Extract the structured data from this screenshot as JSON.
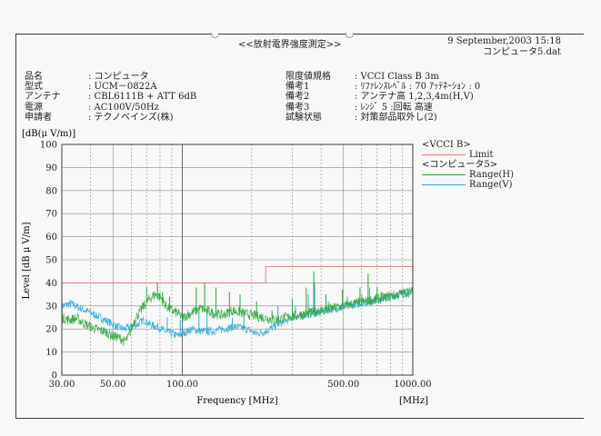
{
  "header": {
    "title": "<<放射電界強度測定>>",
    "date": "9 September,2003 15:18",
    "file": "コンピュータ5.dat"
  },
  "meta_left": [
    {
      "key": "品名",
      "value": ": コンピュータ"
    },
    {
      "key": "型式",
      "value": ": UCM－0822A"
    },
    {
      "key": "アンテナ",
      "value": ": CBL6111B + ATT 6dB"
    },
    {
      "key": "電源",
      "value": ": AC100V/50Hz"
    },
    {
      "key": "申請者",
      "value": ": テクノベインズ(株)"
    }
  ],
  "meta_right": [
    {
      "key": "限度値規格",
      "value": ": VCCI Class B 3m"
    },
    {
      "key": "備考1",
      "value": ": ﾘﾌｧﾚﾝｽﾚﾍﾞﾙ : 70 ｱｯﾃﾈｰｼｮﾝ : 0"
    },
    {
      "key": "備考2",
      "value": ": アンテナ高 1,2,3,4m(H,V)"
    },
    {
      "key": "備考3",
      "value": ": ﾚﾝｼﾞ 5 :回転  高速"
    },
    {
      "key": "試験状態",
      "value": ": 対策部品取外し(2)"
    }
  ],
  "legend": {
    "group1": "<VCCI  B>",
    "limit_label": "Limit",
    "group2": "<コンピュータ5>",
    "h_label": "Range(H)",
    "v_label": "Range(V)"
  },
  "colors": {
    "limit": "#e07a7a",
    "range_h": "#2aa43a",
    "range_v": "#29a9d9",
    "grid": "#8a8a8a"
  },
  "chart_data": {
    "type": "line",
    "xscale": "log",
    "xlim": [
      30,
      1000
    ],
    "ylim": [
      0,
      100
    ],
    "yunit": "[dB(μ V/m)]",
    "ylabel": "Level [dB μ V/m]",
    "xlabel": "Frequency [MHz]",
    "xunit": "[MHz]",
    "yticks": [
      0,
      10,
      20,
      30,
      40,
      50,
      60,
      70,
      80,
      90,
      100
    ],
    "xticks": [
      {
        "v": 30,
        "label": "30.00"
      },
      {
        "v": 50,
        "label": "50.00"
      },
      {
        "v": 100,
        "label": "100.00"
      },
      {
        "v": 500,
        "label": "500.00"
      },
      {
        "v": 1000,
        "label": "1000.00"
      }
    ],
    "limit": {
      "name": "Limit",
      "points": [
        [
          30,
          40
        ],
        [
          230,
          40
        ],
        [
          230,
          47
        ],
        [
          1000,
          47
        ]
      ]
    },
    "series": [
      {
        "name": "Range(H)",
        "points": [
          [
            30,
            25
          ],
          [
            32,
            24
          ],
          [
            35,
            24.5
          ],
          [
            38,
            22
          ],
          [
            42,
            20
          ],
          [
            46,
            19
          ],
          [
            50,
            17
          ],
          [
            54,
            16
          ],
          [
            56,
            14.5
          ],
          [
            58,
            16
          ],
          [
            60,
            20
          ],
          [
            62,
            24
          ],
          [
            65,
            27
          ],
          [
            68,
            30
          ],
          [
            72,
            33
          ],
          [
            76,
            35
          ],
          [
            80,
            34
          ],
          [
            85,
            30
          ],
          [
            90,
            28
          ],
          [
            95,
            27
          ],
          [
            100,
            25
          ],
          [
            110,
            27
          ],
          [
            120,
            29
          ],
          [
            135,
            27
          ],
          [
            150,
            26
          ],
          [
            165,
            28
          ],
          [
            180,
            27
          ],
          [
            200,
            26
          ],
          [
            225,
            25
          ],
          [
            250,
            24
          ],
          [
            280,
            25
          ],
          [
            320,
            26
          ],
          [
            360,
            27
          ],
          [
            400,
            28
          ],
          [
            450,
            29
          ],
          [
            500,
            30
          ],
          [
            560,
            31
          ],
          [
            620,
            32
          ],
          [
            700,
            33
          ],
          [
            780,
            34
          ],
          [
            860,
            35
          ],
          [
            940,
            36
          ],
          [
            1000,
            36
          ]
        ],
        "peaks": [
          [
            70,
            38
          ],
          [
            78,
            40
          ],
          [
            82,
            36
          ],
          [
            88,
            34
          ],
          [
            115,
            38
          ],
          [
            125,
            40
          ],
          [
            140,
            38
          ],
          [
            160,
            36
          ],
          [
            178,
            35
          ],
          [
            210,
            32
          ],
          [
            245,
            28
          ],
          [
            300,
            33
          ],
          [
            345,
            38
          ],
          [
            372,
            45
          ],
          [
            420,
            35
          ],
          [
            495,
            37
          ],
          [
            590,
            38
          ],
          [
            640,
            44
          ],
          [
            700,
            38
          ]
        ]
      },
      {
        "name": "Range(V)",
        "points": [
          [
            30,
            30
          ],
          [
            33,
            31
          ],
          [
            36,
            29
          ],
          [
            40,
            27
          ],
          [
            44,
            25
          ],
          [
            48,
            23
          ],
          [
            52,
            21
          ],
          [
            56,
            20
          ],
          [
            60,
            21
          ],
          [
            64,
            22
          ],
          [
            68,
            24
          ],
          [
            72,
            22
          ],
          [
            78,
            21
          ],
          [
            84,
            19
          ],
          [
            90,
            18
          ],
          [
            96,
            17
          ],
          [
            100,
            18
          ],
          [
            110,
            20
          ],
          [
            120,
            19
          ],
          [
            135,
            19
          ],
          [
            150,
            20
          ],
          [
            170,
            21
          ],
          [
            190,
            20
          ],
          [
            210,
            18
          ],
          [
            230,
            19
          ],
          [
            260,
            22
          ],
          [
            300,
            25
          ],
          [
            340,
            26
          ],
          [
            380,
            27
          ],
          [
            420,
            28
          ],
          [
            470,
            29
          ],
          [
            520,
            30
          ],
          [
            580,
            31
          ],
          [
            650,
            32
          ],
          [
            720,
            33
          ],
          [
            800,
            34
          ],
          [
            880,
            35
          ],
          [
            960,
            36
          ],
          [
            1000,
            37
          ]
        ],
        "peaks": [
          [
            86,
            25
          ],
          [
            98,
            24
          ],
          [
            118,
            27
          ],
          [
            128,
            28
          ],
          [
            165,
            25
          ],
          [
            185,
            26
          ],
          [
            260,
            30
          ],
          [
            310,
            30
          ],
          [
            352,
            35
          ],
          [
            375,
            40
          ],
          [
            430,
            32
          ],
          [
            520,
            34
          ],
          [
            600,
            35
          ],
          [
            650,
            38
          ],
          [
            730,
            36
          ]
        ]
      }
    ]
  }
}
